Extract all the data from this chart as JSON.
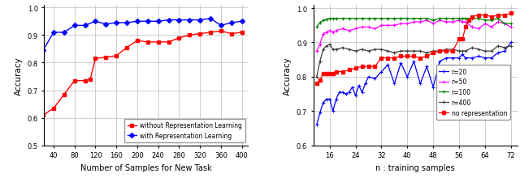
{
  "left": {
    "xlabel": "Number of Samples for New Task",
    "ylabel": "Accuracy",
    "xlim": [
      22,
      412
    ],
    "ylim": [
      0.5,
      1.01
    ],
    "xticks": [
      40,
      80,
      120,
      160,
      200,
      240,
      280,
      320,
      360,
      400
    ],
    "yticks": [
      0.5,
      0.6,
      0.7,
      0.8,
      0.9,
      1.0
    ],
    "without_x": [
      20,
      40,
      60,
      80,
      100,
      110,
      120,
      140,
      160,
      180,
      200,
      220,
      240,
      260,
      280,
      300,
      320,
      340,
      360,
      380,
      400
    ],
    "without_y": [
      0.61,
      0.635,
      0.685,
      0.735,
      0.735,
      0.74,
      0.815,
      0.82,
      0.825,
      0.855,
      0.88,
      0.875,
      0.875,
      0.875,
      0.89,
      0.9,
      0.905,
      0.91,
      0.915,
      0.905,
      0.91
    ],
    "with_x": [
      20,
      40,
      60,
      80,
      100,
      120,
      140,
      160,
      180,
      200,
      220,
      240,
      260,
      280,
      300,
      320,
      340,
      360,
      380,
      400
    ],
    "with_y": [
      0.845,
      0.91,
      0.91,
      0.935,
      0.935,
      0.95,
      0.94,
      0.945,
      0.945,
      0.95,
      0.95,
      0.95,
      0.955,
      0.955,
      0.955,
      0.955,
      0.96,
      0.935,
      0.945,
      0.95
    ],
    "color_without": "#ff0000",
    "color_with": "#0000ff",
    "label_without": "without Representation Learning",
    "label_with": "with Representation Learning"
  },
  "right": {
    "xlabel": "n : training samples",
    "ylabel": "Accuracy",
    "xlim": [
      11,
      74
    ],
    "ylim": [
      0.6,
      1.01
    ],
    "xticks": [
      16,
      24,
      32,
      40,
      48,
      56,
      64,
      72
    ],
    "yticks": [
      0.6,
      0.7,
      0.8,
      0.9,
      1.0
    ],
    "r20_x": [
      12,
      13,
      14,
      15,
      16,
      17,
      18,
      19,
      20,
      21,
      22,
      23,
      24,
      25,
      26,
      27,
      28,
      30,
      32,
      34,
      36,
      38,
      40,
      42,
      44,
      46,
      48,
      50,
      52,
      54,
      56,
      57,
      58,
      60,
      62,
      64,
      66,
      68,
      70,
      72
    ],
    "r20_y": [
      0.66,
      0.695,
      0.725,
      0.735,
      0.735,
      0.7,
      0.735,
      0.755,
      0.755,
      0.75,
      0.755,
      0.77,
      0.745,
      0.775,
      0.755,
      0.78,
      0.8,
      0.795,
      0.815,
      0.835,
      0.78,
      0.84,
      0.8,
      0.845,
      0.78,
      0.83,
      0.77,
      0.845,
      0.855,
      0.855,
      0.855,
      0.865,
      0.855,
      0.855,
      0.86,
      0.855,
      0.855,
      0.87,
      0.875,
      0.9
    ],
    "r50_x": [
      12,
      13,
      14,
      15,
      16,
      17,
      18,
      20,
      22,
      24,
      26,
      28,
      30,
      32,
      34,
      36,
      38,
      40,
      42,
      44,
      46,
      48,
      50,
      52,
      54,
      56,
      57,
      58,
      60,
      62,
      64,
      66,
      68,
      70,
      72
    ],
    "r50_y": [
      0.875,
      0.895,
      0.925,
      0.93,
      0.935,
      0.93,
      0.935,
      0.94,
      0.935,
      0.94,
      0.945,
      0.945,
      0.94,
      0.95,
      0.95,
      0.95,
      0.955,
      0.955,
      0.96,
      0.96,
      0.965,
      0.955,
      0.965,
      0.96,
      0.96,
      0.965,
      0.96,
      0.96,
      0.945,
      0.94,
      0.955,
      0.945,
      0.96,
      0.955,
      0.945
    ],
    "r100_x": [
      12,
      13,
      14,
      15,
      16,
      17,
      18,
      20,
      22,
      24,
      26,
      28,
      30,
      32,
      34,
      36,
      38,
      40,
      42,
      44,
      46,
      48,
      50,
      52,
      54,
      56,
      57,
      58,
      60,
      62,
      64,
      66,
      68,
      70,
      72
    ],
    "r100_y": [
      0.945,
      0.958,
      0.965,
      0.967,
      0.97,
      0.97,
      0.97,
      0.97,
      0.97,
      0.97,
      0.97,
      0.97,
      0.97,
      0.97,
      0.97,
      0.97,
      0.97,
      0.97,
      0.97,
      0.97,
      0.97,
      0.965,
      0.97,
      0.97,
      0.97,
      0.97,
      0.97,
      0.97,
      0.97,
      0.97,
      0.965,
      0.965,
      0.97,
      0.955,
      0.955
    ],
    "r400_x": [
      12,
      13,
      14,
      15,
      16,
      17,
      18,
      20,
      22,
      24,
      26,
      28,
      30,
      32,
      34,
      36,
      38,
      40,
      42,
      44,
      46,
      48,
      50,
      52,
      54,
      56,
      57,
      58,
      60,
      62,
      64,
      66,
      68,
      70,
      72
    ],
    "r400_y": [
      0.8,
      0.845,
      0.88,
      0.89,
      0.895,
      0.88,
      0.88,
      0.885,
      0.88,
      0.875,
      0.88,
      0.875,
      0.88,
      0.88,
      0.875,
      0.87,
      0.875,
      0.875,
      0.875,
      0.875,
      0.87,
      0.875,
      0.875,
      0.88,
      0.88,
      0.875,
      0.875,
      0.875,
      0.885,
      0.88,
      0.875,
      0.875,
      0.89,
      0.885,
      0.89
    ],
    "norep_x": [
      12,
      13,
      14,
      15,
      16,
      17,
      18,
      20,
      22,
      24,
      26,
      28,
      30,
      32,
      34,
      36,
      38,
      40,
      42,
      44,
      46,
      48,
      50,
      52,
      54,
      56,
      57,
      58,
      59,
      60,
      62,
      64,
      66,
      68,
      70,
      72
    ],
    "norep_y": [
      0.78,
      0.79,
      0.81,
      0.81,
      0.81,
      0.81,
      0.815,
      0.815,
      0.82,
      0.825,
      0.83,
      0.83,
      0.83,
      0.855,
      0.855,
      0.855,
      0.86,
      0.86,
      0.86,
      0.855,
      0.86,
      0.87,
      0.875,
      0.875,
      0.875,
      0.91,
      0.91,
      0.945,
      0.965,
      0.975,
      0.98,
      0.98,
      0.975,
      0.98,
      0.98,
      0.985
    ],
    "color_r20": "#0000ff",
    "color_r50": "#ff00ff",
    "color_r100": "#008000",
    "color_r400": "#404040",
    "color_norep": "#ff0000",
    "label_r20": "r=20",
    "label_r50": "r=50",
    "label_r100": "r=100",
    "label_r400": "r=400",
    "label_norep": "no representation"
  }
}
